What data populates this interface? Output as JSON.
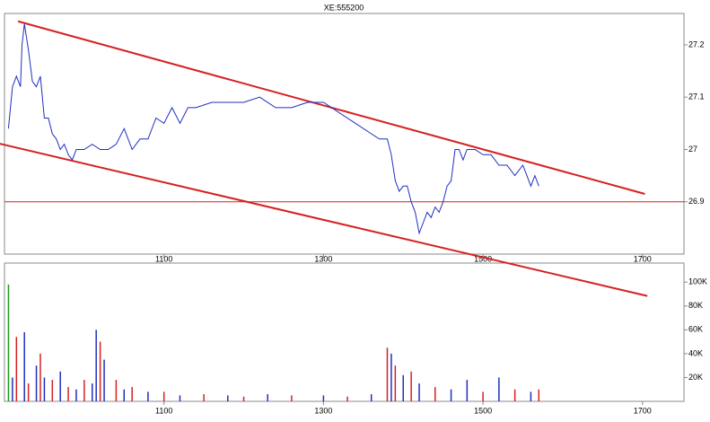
{
  "chart_data": {
    "type": "stock",
    "title": "XE:555200",
    "price": {
      "color": "#1f2fbf",
      "x": [
        905,
        910,
        915,
        920,
        922,
        925,
        930,
        935,
        940,
        945,
        950,
        955,
        960,
        965,
        970,
        975,
        980,
        985,
        990,
        1000,
        1010,
        1020,
        1030,
        1040,
        1050,
        1060,
        1070,
        1080,
        1090,
        1100,
        1110,
        1120,
        1130,
        1140,
        1160,
        1180,
        1200,
        1220,
        1240,
        1260,
        1280,
        1300,
        1320,
        1340,
        1360,
        1370,
        1380,
        1385,
        1390,
        1395,
        1400,
        1405,
        1410,
        1415,
        1420,
        1425,
        1430,
        1435,
        1440,
        1445,
        1450,
        1455,
        1460,
        1465,
        1470,
        1475,
        1480,
        1490,
        1500,
        1510,
        1520,
        1530,
        1540,
        1550,
        1555,
        1560,
        1565,
        1570
      ],
      "values": [
        27.04,
        27.12,
        27.14,
        27.12,
        27.2,
        27.24,
        27.19,
        27.13,
        27.12,
        27.14,
        27.06,
        27.06,
        27.03,
        27.02,
        27.0,
        27.01,
        26.99,
        26.98,
        27.0,
        27.0,
        27.01,
        27.0,
        27.0,
        27.01,
        27.04,
        27.0,
        27.02,
        27.02,
        27.06,
        27.05,
        27.08,
        27.05,
        27.08,
        27.08,
        27.09,
        27.09,
        27.09,
        27.1,
        27.08,
        27.08,
        27.09,
        27.09,
        27.07,
        27.05,
        27.03,
        27.02,
        27.02,
        26.99,
        26.94,
        26.92,
        26.93,
        26.93,
        26.9,
        26.88,
        26.84,
        26.86,
        26.88,
        26.87,
        26.89,
        26.88,
        26.9,
        26.93,
        26.94,
        27.0,
        27.0,
        26.98,
        27.0,
        27.0,
        26.99,
        26.99,
        26.97,
        26.97,
        26.95,
        26.97,
        26.95,
        26.93,
        26.95,
        26.93
      ]
    },
    "trend_lines": {
      "color": "#d62020",
      "lines": [
        {
          "x": [
            917,
            1703
          ],
          "y": [
            27.245,
            26.915
          ]
        },
        {
          "x": [
            894,
            1706
          ],
          "y": [
            27.011,
            26.72
          ]
        }
      ]
    },
    "hline": {
      "color": "#d62020",
      "value": 26.9
    },
    "xlim": [
      900,
      1752
    ],
    "xticks": [
      1100,
      1300,
      1500,
      1700
    ],
    "ylim": [
      26.8,
      27.26
    ],
    "yticks": [
      26.9,
      27,
      27.1,
      27.2
    ],
    "volume": {
      "x": [
        905,
        910,
        915,
        925,
        930,
        940,
        945,
        950,
        960,
        970,
        980,
        990,
        1000,
        1010,
        1015,
        1020,
        1025,
        1040,
        1050,
        1060,
        1080,
        1100,
        1120,
        1150,
        1180,
        1200,
        1230,
        1260,
        1300,
        1330,
        1360,
        1380,
        1385,
        1390,
        1400,
        1410,
        1420,
        1440,
        1460,
        1480,
        1500,
        1520,
        1540,
        1560,
        1570
      ],
      "values": [
        98000,
        20000,
        54000,
        58000,
        15000,
        30000,
        40000,
        20000,
        18000,
        25000,
        12000,
        10000,
        18000,
        15000,
        60000,
        50000,
        35000,
        18000,
        10000,
        12000,
        8000,
        8000,
        5000,
        6000,
        5000,
        4000,
        6000,
        5000,
        5000,
        4000,
        6000,
        45000,
        40000,
        30000,
        22000,
        25000,
        15000,
        12000,
        10000,
        18000,
        8000,
        20000,
        10000,
        8000,
        10000
      ],
      "colors": [
        "#1a9a1a",
        "#1f2fbf",
        "#d62020",
        "#1f2fbf",
        "#d62020",
        "#1f2fbf",
        "#d62020",
        "#1f2fbf",
        "#d62020",
        "#1f2fbf",
        "#d62020",
        "#1f2fbf",
        "#d62020",
        "#1f2fbf",
        "#1f2fbf",
        "#d62020",
        "#1f2fbf",
        "#d62020",
        "#1f2fbf",
        "#d62020",
        "#1f2fbf",
        "#d62020",
        "#1f2fbf",
        "#d62020",
        "#1f2fbf",
        "#d62020",
        "#1f2fbf",
        "#d62020",
        "#1f2fbf",
        "#d62020",
        "#1f2fbf",
        "#d62020",
        "#1f2fbf",
        "#d62020",
        "#1f2fbf",
        "#d62020",
        "#1f2fbf",
        "#d62020",
        "#1f2fbf",
        "#1f2fbf",
        "#d62020",
        "#1f2fbf",
        "#d62020",
        "#1f2fbf",
        "#d62020"
      ],
      "ylim": [
        0,
        116000
      ],
      "yticks": [
        {
          "value": 20000,
          "label": "20K"
        },
        {
          "value": 40000,
          "label": "40K"
        },
        {
          "value": 60000,
          "label": "60K"
        },
        {
          "value": 80000,
          "label": "80K"
        },
        {
          "value": 100000,
          "label": "100K"
        }
      ]
    }
  }
}
